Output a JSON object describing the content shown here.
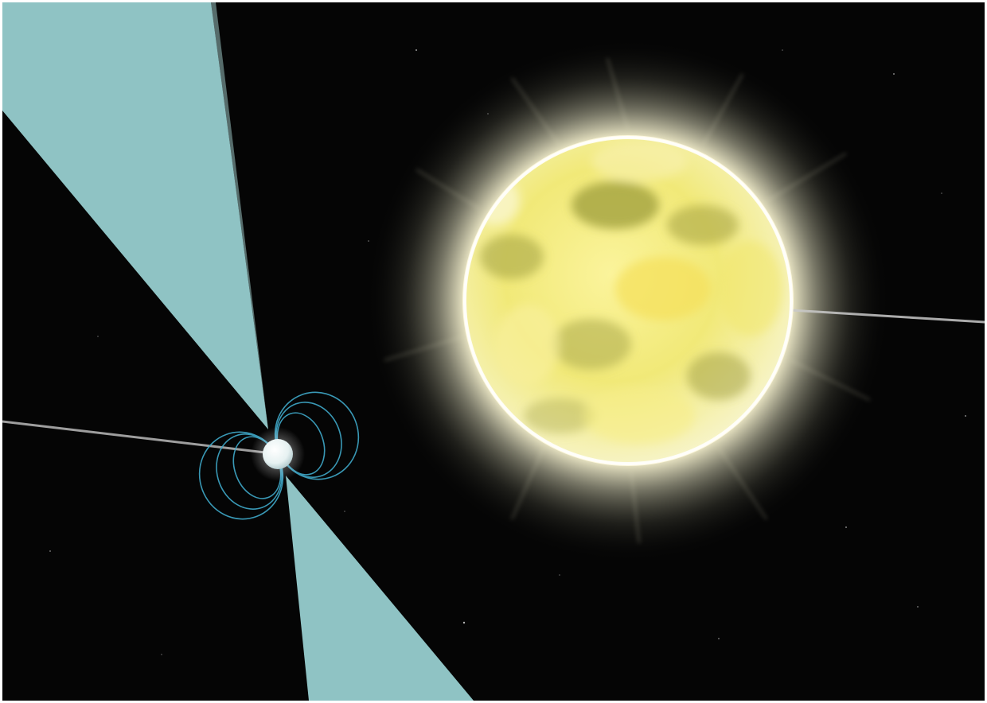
{
  "image": {
    "description_free": true,
    "colors": {
      "space": "#050505",
      "beam": "#8fc3c4",
      "beam_edge": "#a8d3d2",
      "star_surface": "#f4ee8a",
      "star_spot": "#9c9c3a",
      "corona": "#f6f2d4",
      "pulsar": "#eef6f6",
      "field_lines": "#3fa9c9",
      "axis_line": "#b9b9b9"
    },
    "icons": {
      "pulsar": "pulsar-icon",
      "white_dwarf": "star-icon"
    }
  }
}
